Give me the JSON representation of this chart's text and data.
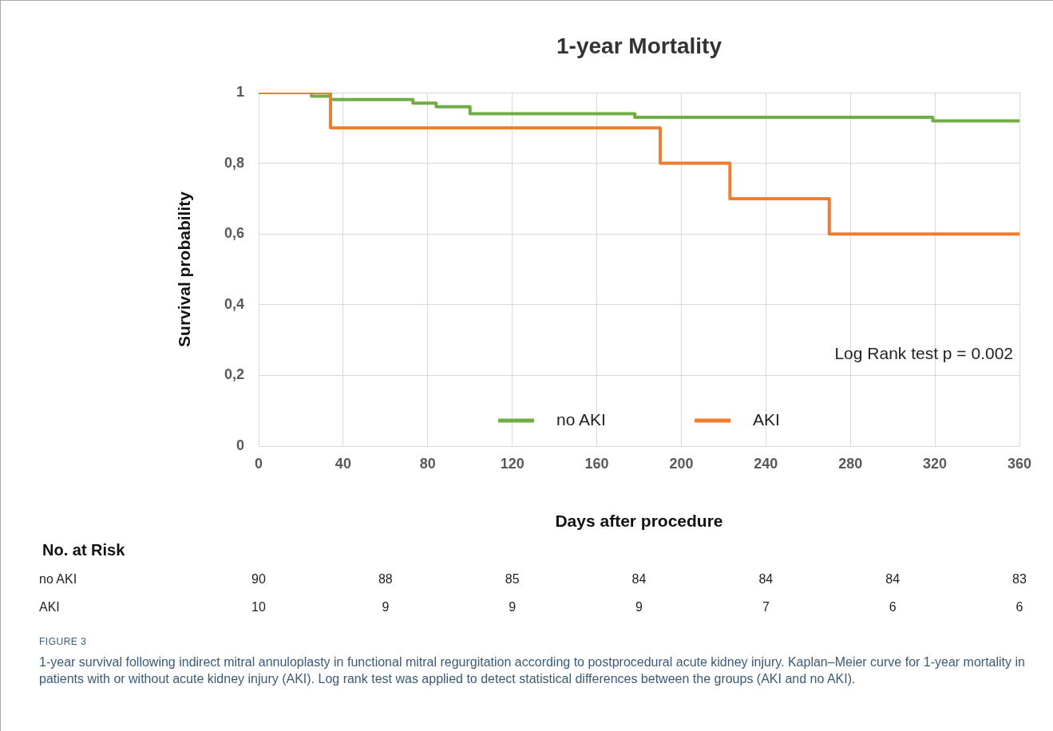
{
  "chart_data": {
    "type": "step",
    "title": "1-year Mortality",
    "xlabel": "Days after procedure",
    "ylabel": "Survival probability",
    "series": [
      {
        "name": "no AKI",
        "color": "#70ad47",
        "x": [
          0,
          25,
          34,
          73,
          84,
          100,
          178,
          319,
          360
        ],
        "values": [
          1,
          0.99,
          0.98,
          0.97,
          0.96,
          0.94,
          0.93,
          0.92,
          0.92
        ]
      },
      {
        "name": "AKI",
        "color": "#ed7d31",
        "x": [
          0,
          34,
          190,
          223,
          270,
          360
        ],
        "values": [
          1,
          0.9,
          0.8,
          0.7,
          0.6,
          0.6
        ]
      }
    ],
    "xlim": [
      0,
      360
    ],
    "xticks": [
      0,
      40,
      80,
      120,
      160,
      200,
      240,
      280,
      320,
      360
    ],
    "ylim": [
      0,
      1
    ],
    "yticks": [
      0,
      {
        "value": 0.2,
        "label": "0,2"
      },
      {
        "value": 0.4,
        "label": "0,4"
      },
      {
        "value": 0.6,
        "label": "0,6"
      },
      {
        "value": 0.8,
        "label": "0,8"
      },
      1
    ],
    "grid": true,
    "legend": "bottom",
    "line_style": "solid",
    "marker": "none",
    "annotations": [
      "Log Rank test p = 0.002",
      "No. at Risk",
      "90",
      "88",
      "85",
      "84",
      "84",
      "84",
      "83",
      "10",
      "9",
      "9",
      "9",
      "7",
      "6",
      "6",
      "FIGURE 3",
      "1-year survival following indirect mitral annuloplasty in functional mitral regurgitation according to postprocedural acute kidney injury. Kaplan–Meier curve for 1-year mortality in patients with or without acute kidney injury (AKI). Log rank test was applied to detect statistical differences between the groups (AKI and no AKI)."
    ]
  }
}
